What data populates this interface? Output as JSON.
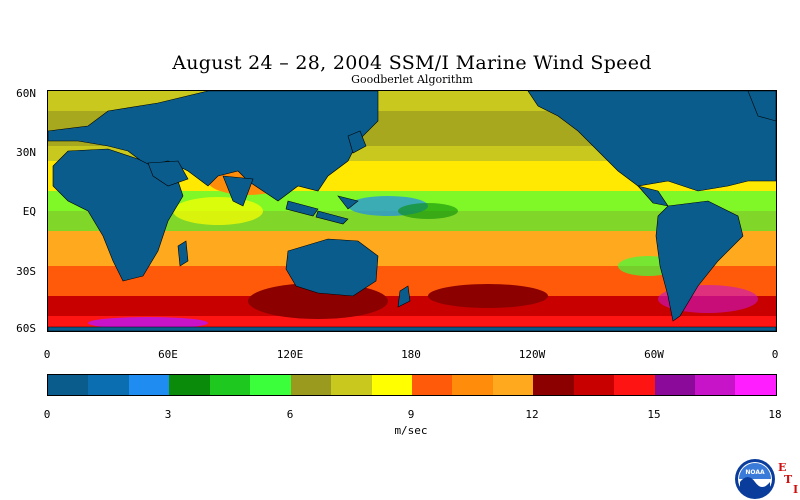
{
  "title": "August 24 – 28, 2004 SSM/I Marine Wind Speed",
  "subtitle": "Goodberlet Algorithm",
  "map": {
    "lat_labels": [
      "60N",
      "30N",
      "EQ",
      "30S",
      "60S"
    ],
    "lon_labels": [
      "0",
      "60E",
      "120E",
      "180",
      "120W",
      "60W",
      "0"
    ],
    "land_color": "#0a5c8c",
    "ocean_base_color": "#f08a10"
  },
  "colorbar": {
    "colors": [
      "#0a5c8c",
      "#0a6eb0",
      "#1e8cf0",
      "#0a8c0a",
      "#1ec81e",
      "#3cff3c",
      "#9a9a1e",
      "#c8c81e",
      "#ffff00",
      "#ff5a0a",
      "#ff8c0a",
      "#ffaa1e",
      "#8c0000",
      "#c80000",
      "#ff1414",
      "#8c0a9a",
      "#c814c8",
      "#ff1eff"
    ],
    "tick_labels": [
      "0",
      "3",
      "6",
      "9",
      "12",
      "15",
      "18"
    ],
    "min": 0,
    "max": 18,
    "units": "m/sec"
  },
  "logo": {
    "noaa_text": "NOAA",
    "eti_letters": [
      "E",
      "T",
      "I"
    ]
  }
}
